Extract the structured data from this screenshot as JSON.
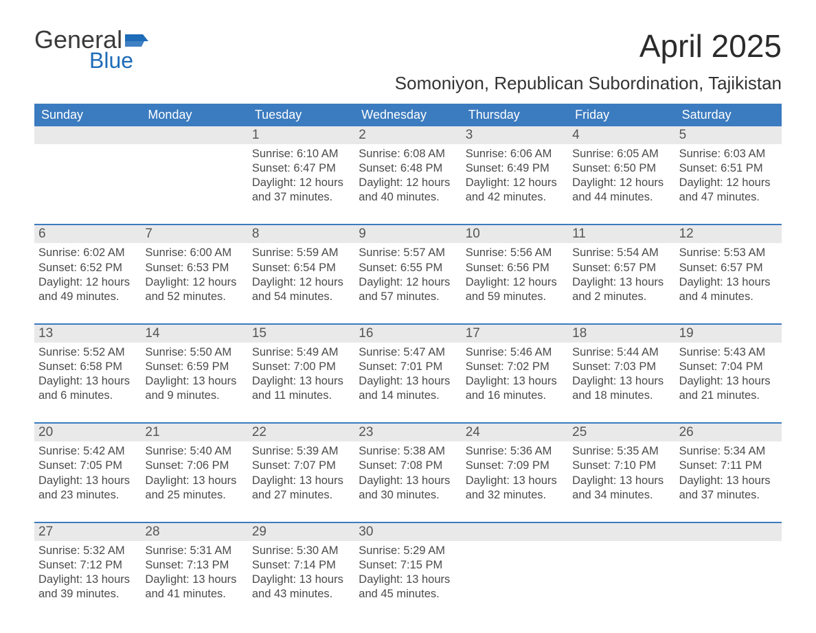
{
  "logo": {
    "word1": "General",
    "word2": "Blue",
    "word1_color": "#3a3a3a",
    "word2_color": "#1e6bb8",
    "flag_color": "#1e6bb8"
  },
  "title": {
    "month_year": "April 2025",
    "location": "Somoniyon, Republican Subordination, Tajikistan"
  },
  "colors": {
    "header_bg": "#3b7bbf",
    "header_text": "#ffffff",
    "daynum_bg": "#e9e9e9",
    "rule": "#3b7bbf",
    "page_bg": "#ffffff",
    "body_text": "#4a4a4a"
  },
  "days_of_week": [
    "Sunday",
    "Monday",
    "Tuesday",
    "Wednesday",
    "Thursday",
    "Friday",
    "Saturday"
  ],
  "weeks": [
    [
      null,
      null,
      {
        "n": "1",
        "sunrise": "6:10 AM",
        "sunset": "6:47 PM",
        "day_h": 12,
        "day_m": 37
      },
      {
        "n": "2",
        "sunrise": "6:08 AM",
        "sunset": "6:48 PM",
        "day_h": 12,
        "day_m": 40
      },
      {
        "n": "3",
        "sunrise": "6:06 AM",
        "sunset": "6:49 PM",
        "day_h": 12,
        "day_m": 42
      },
      {
        "n": "4",
        "sunrise": "6:05 AM",
        "sunset": "6:50 PM",
        "day_h": 12,
        "day_m": 44
      },
      {
        "n": "5",
        "sunrise": "6:03 AM",
        "sunset": "6:51 PM",
        "day_h": 12,
        "day_m": 47
      }
    ],
    [
      {
        "n": "6",
        "sunrise": "6:02 AM",
        "sunset": "6:52 PM",
        "day_h": 12,
        "day_m": 49
      },
      {
        "n": "7",
        "sunrise": "6:00 AM",
        "sunset": "6:53 PM",
        "day_h": 12,
        "day_m": 52
      },
      {
        "n": "8",
        "sunrise": "5:59 AM",
        "sunset": "6:54 PM",
        "day_h": 12,
        "day_m": 54
      },
      {
        "n": "9",
        "sunrise": "5:57 AM",
        "sunset": "6:55 PM",
        "day_h": 12,
        "day_m": 57
      },
      {
        "n": "10",
        "sunrise": "5:56 AM",
        "sunset": "6:56 PM",
        "day_h": 12,
        "day_m": 59
      },
      {
        "n": "11",
        "sunrise": "5:54 AM",
        "sunset": "6:57 PM",
        "day_h": 13,
        "day_m": 2
      },
      {
        "n": "12",
        "sunrise": "5:53 AM",
        "sunset": "6:57 PM",
        "day_h": 13,
        "day_m": 4
      }
    ],
    [
      {
        "n": "13",
        "sunrise": "5:52 AM",
        "sunset": "6:58 PM",
        "day_h": 13,
        "day_m": 6
      },
      {
        "n": "14",
        "sunrise": "5:50 AM",
        "sunset": "6:59 PM",
        "day_h": 13,
        "day_m": 9
      },
      {
        "n": "15",
        "sunrise": "5:49 AM",
        "sunset": "7:00 PM",
        "day_h": 13,
        "day_m": 11
      },
      {
        "n": "16",
        "sunrise": "5:47 AM",
        "sunset": "7:01 PM",
        "day_h": 13,
        "day_m": 14
      },
      {
        "n": "17",
        "sunrise": "5:46 AM",
        "sunset": "7:02 PM",
        "day_h": 13,
        "day_m": 16
      },
      {
        "n": "18",
        "sunrise": "5:44 AM",
        "sunset": "7:03 PM",
        "day_h": 13,
        "day_m": 18
      },
      {
        "n": "19",
        "sunrise": "5:43 AM",
        "sunset": "7:04 PM",
        "day_h": 13,
        "day_m": 21
      }
    ],
    [
      {
        "n": "20",
        "sunrise": "5:42 AM",
        "sunset": "7:05 PM",
        "day_h": 13,
        "day_m": 23
      },
      {
        "n": "21",
        "sunrise": "5:40 AM",
        "sunset": "7:06 PM",
        "day_h": 13,
        "day_m": 25
      },
      {
        "n": "22",
        "sunrise": "5:39 AM",
        "sunset": "7:07 PM",
        "day_h": 13,
        "day_m": 27
      },
      {
        "n": "23",
        "sunrise": "5:38 AM",
        "sunset": "7:08 PM",
        "day_h": 13,
        "day_m": 30
      },
      {
        "n": "24",
        "sunrise": "5:36 AM",
        "sunset": "7:09 PM",
        "day_h": 13,
        "day_m": 32
      },
      {
        "n": "25",
        "sunrise": "5:35 AM",
        "sunset": "7:10 PM",
        "day_h": 13,
        "day_m": 34
      },
      {
        "n": "26",
        "sunrise": "5:34 AM",
        "sunset": "7:11 PM",
        "day_h": 13,
        "day_m": 37
      }
    ],
    [
      {
        "n": "27",
        "sunrise": "5:32 AM",
        "sunset": "7:12 PM",
        "day_h": 13,
        "day_m": 39
      },
      {
        "n": "28",
        "sunrise": "5:31 AM",
        "sunset": "7:13 PM",
        "day_h": 13,
        "day_m": 41
      },
      {
        "n": "29",
        "sunrise": "5:30 AM",
        "sunset": "7:14 PM",
        "day_h": 13,
        "day_m": 43
      },
      {
        "n": "30",
        "sunrise": "5:29 AM",
        "sunset": "7:15 PM",
        "day_h": 13,
        "day_m": 45
      },
      null,
      null,
      null
    ]
  ],
  "labels": {
    "sunrise": "Sunrise: ",
    "sunset": "Sunset: ",
    "daylight_prefix": "Daylight: ",
    "hours_word": " hours",
    "and_word": "and ",
    "minutes_suffix": " minutes."
  }
}
